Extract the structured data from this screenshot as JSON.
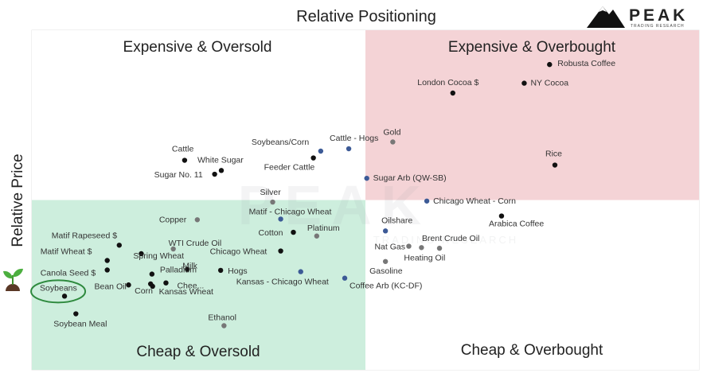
{
  "logo": {
    "name": "PEAK",
    "subtitle": "TRADING RESEARCH",
    "icon": "mountain-icon"
  },
  "chart_data": {
    "type": "scatter",
    "title": "Relative Positioning",
    "xlabel": "",
    "ylabel": "Relative Price",
    "xlim": [
      0,
      100
    ],
    "ylim": [
      0,
      100
    ],
    "grid": false,
    "legend": "none",
    "quadrants": [
      {
        "label": "Expensive & Oversold",
        "position": "top-left",
        "color": "#ffffff"
      },
      {
        "label": "Expensive & Overbought",
        "position": "top-right",
        "color": "#f4d3d6"
      },
      {
        "label": "Cheap & Oversold",
        "position": "bottom-left",
        "color": "#cdeedd"
      },
      {
        "label": "Cheap & Overbought",
        "position": "bottom-right",
        "color": "#ffffff"
      }
    ],
    "points": [
      {
        "name": "Robusta Coffee",
        "x": 77.6,
        "y": 89.9,
        "color": "#111111"
      },
      {
        "name": "London Cocoa $",
        "x": 63.1,
        "y": 81.5,
        "color": "#111111"
      },
      {
        "name": "NY Cocoa",
        "x": 73.8,
        "y": 84.4,
        "color": "#111111"
      },
      {
        "name": "Gold",
        "x": 54.1,
        "y": 67.1,
        "color": "#777777"
      },
      {
        "name": "Cattle - Hogs",
        "x": 47.5,
        "y": 65.1,
        "color": "#3c5a96"
      },
      {
        "name": "Soybeans/Corn",
        "x": 43.3,
        "y": 64.4,
        "color": "#3c5a96"
      },
      {
        "name": "Cattle",
        "x": 22.9,
        "y": 61.7,
        "color": "#111111"
      },
      {
        "name": "White Sugar",
        "x": 28.4,
        "y": 58.7,
        "color": "#111111"
      },
      {
        "name": "Sugar No. 11",
        "x": 27.4,
        "y": 57.6,
        "color": "#111111"
      },
      {
        "name": "Feeder Cattle",
        "x": 42.2,
        "y": 62.4,
        "color": "#111111"
      },
      {
        "name": "Rice",
        "x": 78.4,
        "y": 60.3,
        "color": "#111111"
      },
      {
        "name": "Sugar Arb (QW-SB)",
        "x": 50.2,
        "y": 56.4,
        "color": "#3c5a96"
      },
      {
        "name": "Silver",
        "x": 36.1,
        "y": 49.4,
        "color": "#777777"
      },
      {
        "name": "Chicago Wheat - Corn",
        "x": 59.2,
        "y": 49.7,
        "color": "#3c5a96"
      },
      {
        "name": "Matif - Chicago Wheat",
        "x": 37.3,
        "y": 44.4,
        "color": "#3c5a96"
      },
      {
        "name": "Copper",
        "x": 24.8,
        "y": 44.2,
        "color": "#777777"
      },
      {
        "name": "Arabica Coffee",
        "x": 70.4,
        "y": 45.3,
        "color": "#111111"
      },
      {
        "name": "Oilshare",
        "x": 53.0,
        "y": 40.9,
        "color": "#3c5a96"
      },
      {
        "name": "Cotton",
        "x": 39.2,
        "y": 40.5,
        "color": "#111111"
      },
      {
        "name": "Platinum",
        "x": 42.7,
        "y": 39.4,
        "color": "#777777"
      },
      {
        "name": "Matif Rapeseed $",
        "x": 13.1,
        "y": 36.7,
        "color": "#111111"
      },
      {
        "name": "WTI Crude Oil",
        "x": 21.2,
        "y": 35.6,
        "color": "#777777"
      },
      {
        "name": "Spring Wheat",
        "x": 16.4,
        "y": 34.2,
        "color": "#111111"
      },
      {
        "name": "Chicago Wheat",
        "x": 37.3,
        "y": 35.0,
        "color": "#111111"
      },
      {
        "name": "Brent Crude Oil",
        "x": 61.1,
        "y": 35.8,
        "color": "#777777"
      },
      {
        "name": "Nat Gas",
        "x": 56.5,
        "y": 36.4,
        "color": "#777777"
      },
      {
        "name": "Matif Wheat $",
        "x": 11.3,
        "y": 32.2,
        "color": "#111111"
      },
      {
        "name": "Heating Oil",
        "x": 58.4,
        "y": 36.0,
        "color": "#777777"
      },
      {
        "name": "Gasoline",
        "x": 53.0,
        "y": 31.9,
        "color": "#777777"
      },
      {
        "name": "Milk",
        "x": 23.3,
        "y": 29.6,
        "color": "#111111"
      },
      {
        "name": "Hogs",
        "x": 28.3,
        "y": 29.3,
        "color": "#111111"
      },
      {
        "name": "Palladium",
        "x": 18.0,
        "y": 28.2,
        "color": "#111111"
      },
      {
        "name": "Canola Seed $",
        "x": 11.3,
        "y": 29.4,
        "color": "#111111"
      },
      {
        "name": "Kansas - Chicago Wheat",
        "x": 40.3,
        "y": 28.9,
        "color": "#3c5a96"
      },
      {
        "name": "Coffee Arb (KC-DF)",
        "x": 46.9,
        "y": 27.0,
        "color": "#3c5a96"
      },
      {
        "name": "Chee...",
        "x": 20.1,
        "y": 25.6,
        "color": "#111111"
      },
      {
        "name": "Kansas Wheat",
        "x": 18.1,
        "y": 24.6,
        "color": "#111111"
      },
      {
        "name": "Corn",
        "x": 17.8,
        "y": 25.3,
        "color": "#111111"
      },
      {
        "name": "Bean Oil",
        "x": 14.5,
        "y": 25.0,
        "color": "#111111"
      },
      {
        "name": "Soybeans",
        "x": 4.9,
        "y": 21.7,
        "color": "#111111",
        "highlighted": true
      },
      {
        "name": "Soybean Meal",
        "x": 6.6,
        "y": 16.5,
        "color": "#111111"
      },
      {
        "name": "Ethanol",
        "x": 28.8,
        "y": 13.0,
        "color": "#777777"
      }
    ]
  }
}
